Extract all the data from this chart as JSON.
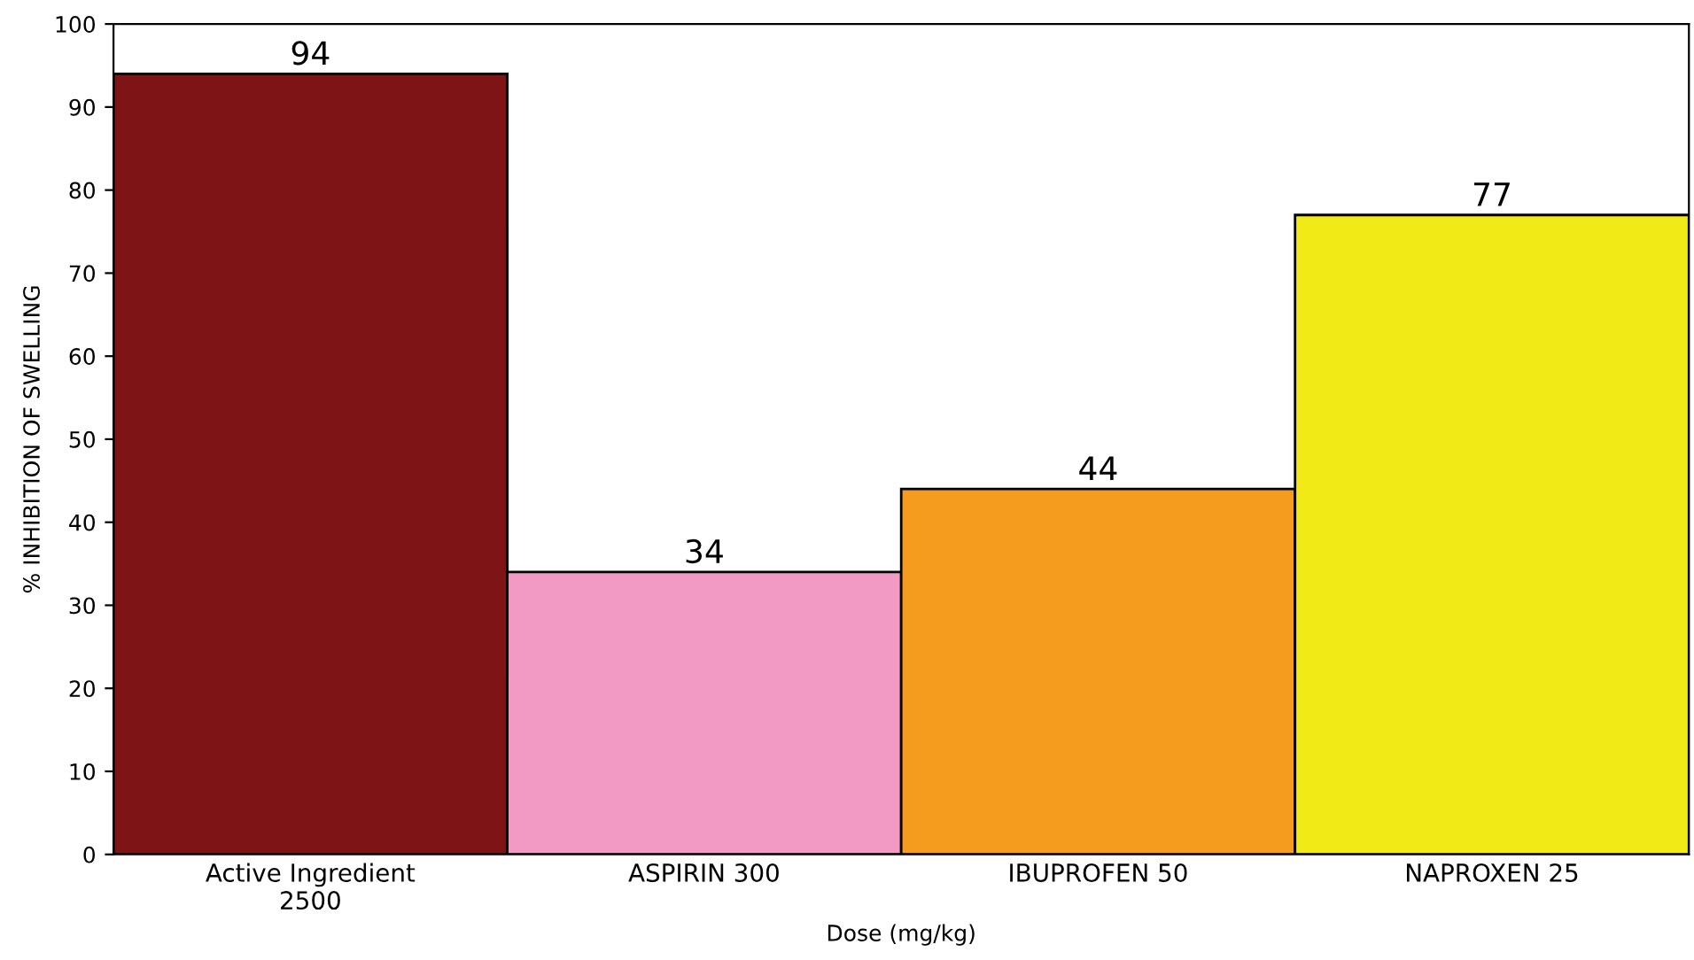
{
  "chart_data": {
    "type": "bar",
    "xlabel": "Dose (mg/kg)",
    "ylabel": "% INHIBITION OF SWELLING",
    "categories": [
      "Active Ingredient\n2500",
      "ASPIRIN 300",
      "IBUPROFEN 50",
      "NAPROXEN 25"
    ],
    "values": [
      94,
      34,
      44,
      77
    ],
    "colors": [
      "#7f1416",
      "#f39ac4",
      "#f59c1f",
      "#f2ea17"
    ],
    "ylim": [
      0,
      100
    ],
    "yticks": [
      0,
      10,
      20,
      30,
      40,
      50,
      60,
      70,
      80,
      90,
      100
    ],
    "data_labels": true,
    "grid": false
  }
}
